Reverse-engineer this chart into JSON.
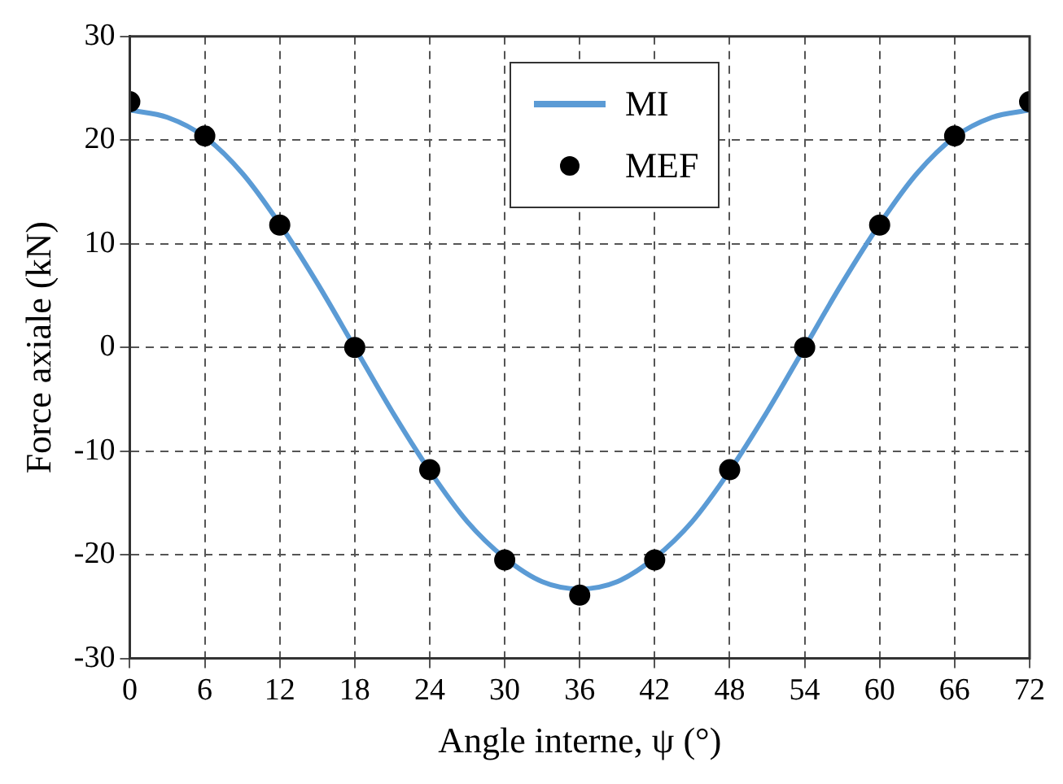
{
  "chart_data": {
    "type": "line",
    "xlabel": "Angle interne, ψ (°)",
    "ylabel": "Force axiale (kN)",
    "xlim": [
      0,
      72
    ],
    "xticks": [
      0,
      6,
      12,
      18,
      24,
      30,
      36,
      42,
      48,
      54,
      60,
      66,
      72
    ],
    "ylim": [
      -30,
      30
    ],
    "yticks": [
      -30,
      -20,
      -10,
      0,
      10,
      20,
      30
    ],
    "grid": true,
    "legend": "top",
    "series": [
      {
        "name": "MI",
        "color": "#5b9bd5",
        "marker": "none",
        "line_style": "solid",
        "x": [
          0,
          3,
          6,
          9,
          12,
          15,
          18,
          21,
          24,
          27,
          30,
          33,
          36,
          39,
          42,
          45,
          48,
          51,
          54,
          57,
          60,
          63,
          66,
          69,
          72
        ],
        "values": [
          22.9,
          22.2,
          20.3,
          16.8,
          11.9,
          6.2,
          0,
          -6.2,
          -11.9,
          -16.8,
          -20.3,
          -22.6,
          -23.3,
          -22.6,
          -20.3,
          -16.8,
          -11.9,
          -6.2,
          0,
          6.2,
          11.9,
          16.8,
          20.3,
          22.2,
          22.9
        ]
      },
      {
        "name": "MEF",
        "type": "scatter",
        "color": "#000000",
        "marker": "circle",
        "x": [
          0,
          6,
          12,
          18,
          24,
          30,
          36,
          42,
          48,
          54,
          60,
          66,
          72
        ],
        "values": [
          23.7,
          20.4,
          11.8,
          0,
          -11.8,
          -20.5,
          -23.9,
          -20.5,
          -11.8,
          0,
          11.8,
          20.4,
          23.7
        ]
      }
    ]
  }
}
